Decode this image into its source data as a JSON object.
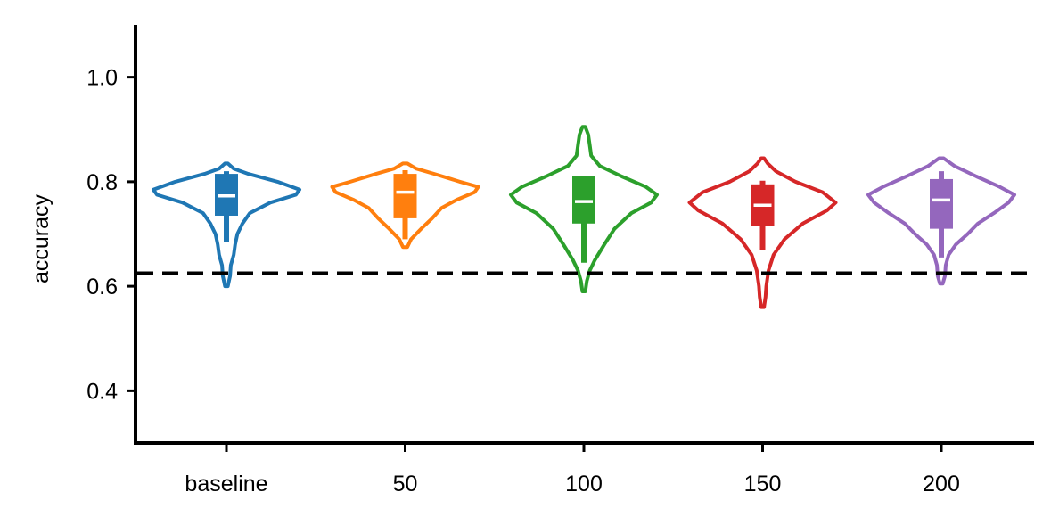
{
  "chart_data": {
    "type": "violin",
    "title": "",
    "xlabel": "",
    "ylabel": "accuracy",
    "ylim": [
      0.3,
      1.1
    ],
    "yticks": [
      "0.4",
      "0.6",
      "0.8",
      "1.0"
    ],
    "categories": [
      "baseline",
      "50",
      "100",
      "150",
      "200"
    ],
    "reference_line": {
      "y": 0.625,
      "style": "dashed",
      "color": "#000000"
    },
    "series": [
      {
        "category": "baseline",
        "color": "#1f77b4",
        "min": 0.6,
        "max": 0.835,
        "q1": 0.735,
        "median": 0.773,
        "q3": 0.815,
        "whisker_low": 0.685,
        "whisker_high": 0.82,
        "density": [
          [
            0.6,
            0.02
          ],
          [
            0.62,
            0.05
          ],
          [
            0.64,
            0.06
          ],
          [
            0.66,
            0.1
          ],
          [
            0.68,
            0.12
          ],
          [
            0.7,
            0.15
          ],
          [
            0.72,
            0.22
          ],
          [
            0.74,
            0.32
          ],
          [
            0.76,
            0.6
          ],
          [
            0.775,
            0.95
          ],
          [
            0.785,
            1.0
          ],
          [
            0.8,
            0.7
          ],
          [
            0.815,
            0.3
          ],
          [
            0.825,
            0.1
          ],
          [
            0.835,
            0.02
          ]
        ]
      },
      {
        "category": "50",
        "color": "#ff7f0e",
        "min": 0.675,
        "max": 0.835,
        "q1": 0.73,
        "median": 0.78,
        "q3": 0.815,
        "whisker_low": 0.69,
        "whisker_high": 0.822,
        "density": [
          [
            0.675,
            0.03
          ],
          [
            0.69,
            0.08
          ],
          [
            0.71,
            0.22
          ],
          [
            0.73,
            0.37
          ],
          [
            0.75,
            0.5
          ],
          [
            0.765,
            0.7
          ],
          [
            0.78,
            0.95
          ],
          [
            0.79,
            1.0
          ],
          [
            0.8,
            0.75
          ],
          [
            0.815,
            0.4
          ],
          [
            0.825,
            0.15
          ],
          [
            0.835,
            0.03
          ]
        ]
      },
      {
        "category": "100",
        "color": "#2ca02c",
        "min": 0.59,
        "max": 0.905,
        "q1": 0.72,
        "median": 0.762,
        "q3": 0.81,
        "whisker_low": 0.645,
        "whisker_high": 0.81,
        "density": [
          [
            0.59,
            0.02
          ],
          [
            0.61,
            0.04
          ],
          [
            0.63,
            0.08
          ],
          [
            0.65,
            0.15
          ],
          [
            0.68,
            0.28
          ],
          [
            0.71,
            0.42
          ],
          [
            0.74,
            0.65
          ],
          [
            0.76,
            0.92
          ],
          [
            0.775,
            1.0
          ],
          [
            0.79,
            0.85
          ],
          [
            0.81,
            0.52
          ],
          [
            0.83,
            0.22
          ],
          [
            0.85,
            0.1
          ],
          [
            0.87,
            0.08
          ],
          [
            0.89,
            0.06
          ],
          [
            0.905,
            0.02
          ]
        ]
      },
      {
        "category": "150",
        "color": "#d62728",
        "min": 0.56,
        "max": 0.845,
        "q1": 0.715,
        "median": 0.755,
        "q3": 0.795,
        "whisker_low": 0.67,
        "whisker_high": 0.802,
        "density": [
          [
            0.56,
            0.02
          ],
          [
            0.58,
            0.04
          ],
          [
            0.6,
            0.05
          ],
          [
            0.63,
            0.08
          ],
          [
            0.66,
            0.15
          ],
          [
            0.69,
            0.3
          ],
          [
            0.72,
            0.55
          ],
          [
            0.745,
            0.88
          ],
          [
            0.76,
            1.0
          ],
          [
            0.78,
            0.82
          ],
          [
            0.8,
            0.45
          ],
          [
            0.82,
            0.18
          ],
          [
            0.835,
            0.07
          ],
          [
            0.845,
            0.02
          ]
        ]
      },
      {
        "category": "200",
        "color": "#9467bd",
        "min": 0.605,
        "max": 0.845,
        "q1": 0.71,
        "median": 0.765,
        "q3": 0.805,
        "whisker_low": 0.655,
        "whisker_high": 0.82,
        "density": [
          [
            0.605,
            0.02
          ],
          [
            0.62,
            0.05
          ],
          [
            0.64,
            0.06
          ],
          [
            0.66,
            0.1
          ],
          [
            0.68,
            0.2
          ],
          [
            0.7,
            0.36
          ],
          [
            0.72,
            0.5
          ],
          [
            0.74,
            0.72
          ],
          [
            0.76,
            0.92
          ],
          [
            0.775,
            1.0
          ],
          [
            0.79,
            0.8
          ],
          [
            0.81,
            0.48
          ],
          [
            0.83,
            0.18
          ],
          [
            0.845,
            0.03
          ]
        ]
      }
    ]
  }
}
